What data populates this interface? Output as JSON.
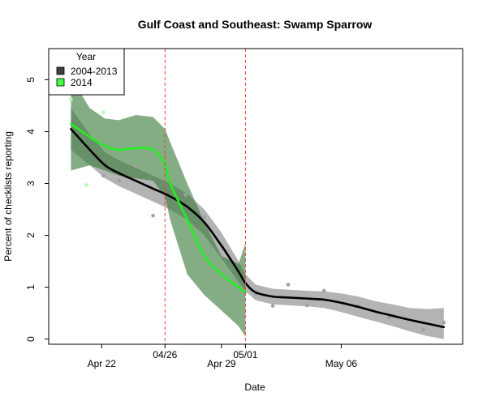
{
  "chart_data": {
    "type": "line",
    "title": "Gulf Coast and Southeast: Swamp Sparrow",
    "xlabel": "Date",
    "ylabel": "Percent of checklists reporting",
    "xlim": [
      -3.1,
      21.1
    ],
    "ylim": [
      -0.1,
      5.6
    ],
    "x_ticks": [
      {
        "x": 0,
        "label": "Apr 22"
      },
      {
        "x": 7,
        "label": "Apr 29"
      },
      {
        "x": 14,
        "label": "May 06"
      }
    ],
    "y_ticks": [
      {
        "y": 0,
        "label": "0"
      },
      {
        "y": 1,
        "label": "1"
      },
      {
        "y": 2,
        "label": "2"
      },
      {
        "y": 3,
        "label": "3"
      },
      {
        "y": 4,
        "label": "4"
      },
      {
        "y": 5,
        "label": "5"
      }
    ],
    "reference_lines": [
      {
        "x": 3.7,
        "label": "04/26",
        "color": "#e8413c"
      },
      {
        "x": 8.4,
        "label": "05/01",
        "color": "#e8413c"
      }
    ],
    "legend": {
      "title": "Year",
      "position": "top-left",
      "entries": [
        {
          "label": "2004-2013",
          "color": "#404040"
        },
        {
          "label": "2014",
          "color": "#44ff44"
        }
      ]
    },
    "series": [
      {
        "name": "2004-2013",
        "line_color": "#000000",
        "band_color": "#999999",
        "x": [
          -1.8,
          -0.7,
          0.2,
          1.0,
          2.0,
          3.0,
          4.0,
          5.0,
          6.0,
          7.0,
          8.0,
          8.4,
          9.0,
          10.0,
          11.0,
          12.0,
          13.0,
          14.0,
          15.0,
          16.0,
          17.0,
          18.0,
          19.0,
          20.0
        ],
        "y": [
          4.05,
          3.65,
          3.35,
          3.2,
          3.05,
          2.9,
          2.75,
          2.55,
          2.25,
          1.8,
          1.3,
          1.08,
          0.9,
          0.82,
          0.8,
          0.78,
          0.76,
          0.7,
          0.62,
          0.53,
          0.45,
          0.37,
          0.3,
          0.23
        ],
        "lower": [
          3.65,
          3.35,
          3.1,
          2.95,
          2.8,
          2.65,
          2.5,
          2.3,
          2.0,
          1.55,
          1.1,
          0.92,
          0.75,
          0.67,
          0.65,
          0.63,
          0.6,
          0.52,
          0.43,
          0.34,
          0.25,
          0.15,
          0.06,
          0.0
        ],
        "upper": [
          4.45,
          3.95,
          3.6,
          3.45,
          3.3,
          3.15,
          3.0,
          2.8,
          2.5,
          2.05,
          1.5,
          1.25,
          1.05,
          0.97,
          0.95,
          0.93,
          0.92,
          0.88,
          0.82,
          0.73,
          0.67,
          0.6,
          0.58,
          0.6
        ]
      },
      {
        "name": "2014",
        "line_color": "#22ee22",
        "band_color": "#3a7a3a",
        "x": [
          -1.8,
          -0.7,
          0.2,
          1.0,
          2.0,
          3.0,
          3.7,
          4.0,
          5.0,
          6.0,
          7.0,
          8.0,
          8.4
        ],
        "y": [
          4.15,
          3.9,
          3.72,
          3.65,
          3.68,
          3.65,
          3.35,
          3.0,
          2.3,
          1.6,
          1.25,
          1.0,
          0.9
        ],
        "lower": [
          3.25,
          3.35,
          3.25,
          3.15,
          3.1,
          3.05,
          2.75,
          2.3,
          1.25,
          0.85,
          0.55,
          0.25,
          0.05
        ],
        "upper": [
          5.05,
          4.45,
          4.25,
          4.22,
          4.32,
          4.28,
          4.05,
          3.8,
          3.0,
          2.25,
          1.6,
          1.45,
          1.85
        ]
      }
    ],
    "points": [
      {
        "series": "2014",
        "x": -1.8,
        "y": 4.62,
        "color": "#aaffaa"
      },
      {
        "series": "2014",
        "x": -0.9,
        "y": 2.97,
        "color": "#aaffaa"
      },
      {
        "series": "2014",
        "x": 0.1,
        "y": 4.37,
        "color": "#aaffaa"
      },
      {
        "series": "2004-2013",
        "x": 0.1,
        "y": 3.15,
        "color": "#a0a0a0"
      },
      {
        "series": "2004-2013",
        "x": 1.0,
        "y": 3.05,
        "color": "#a0a0a0"
      },
      {
        "series": "2004-2013",
        "x": 2.0,
        "y": 3.33,
        "color": "#a0a0a0"
      },
      {
        "series": "2004-2013",
        "x": 3.0,
        "y": 2.38,
        "color": "#a0a0a0"
      },
      {
        "series": "2004-2013",
        "x": 4.9,
        "y": 2.78,
        "color": "#a0a0a0"
      },
      {
        "series": "2004-2013",
        "x": 6.0,
        "y": 2.35,
        "color": "#a0a0a0"
      },
      {
        "series": "2004-2013",
        "x": 9.0,
        "y": 0.87,
        "color": "#a0a0a0"
      },
      {
        "series": "2004-2013",
        "x": 10.0,
        "y": 0.64,
        "color": "#a0a0a0"
      },
      {
        "series": "2004-2013",
        "x": 10.9,
        "y": 1.05,
        "color": "#a0a0a0"
      },
      {
        "series": "2004-2013",
        "x": 12.0,
        "y": 0.65,
        "color": "#a0a0a0"
      },
      {
        "series": "2004-2013",
        "x": 13.0,
        "y": 0.93,
        "color": "#a0a0a0"
      },
      {
        "series": "2004-2013",
        "x": 15.0,
        "y": 0.65,
        "color": "#a0a0a0"
      },
      {
        "series": "2004-2013",
        "x": 16.8,
        "y": 0.42,
        "color": "#a0a0a0"
      },
      {
        "series": "2004-2013",
        "x": 18.8,
        "y": 0.19,
        "color": "#a0a0a0"
      },
      {
        "series": "2004-2013",
        "x": 20.0,
        "y": 0.32,
        "color": "#a0a0a0"
      }
    ]
  }
}
